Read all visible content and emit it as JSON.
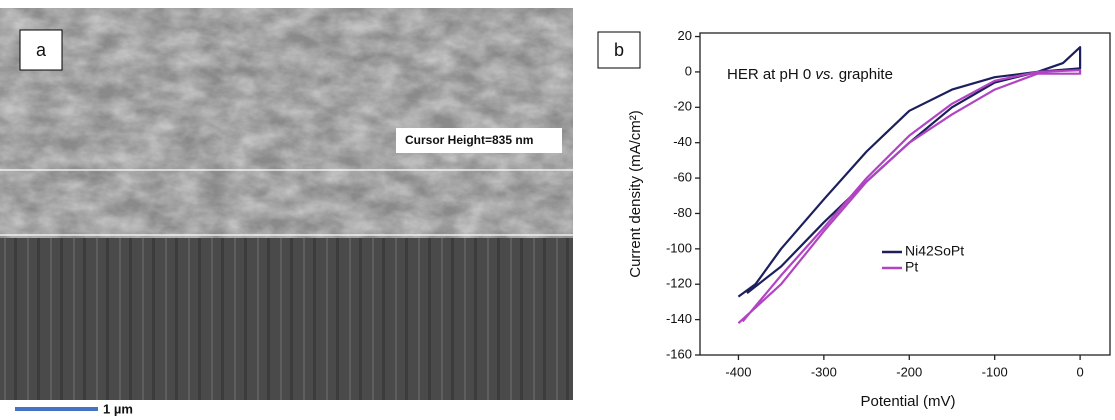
{
  "panel_a": {
    "label": "a",
    "cursor_label": "Cursor Height=835 nm",
    "scale_bar": "1 µm"
  },
  "chart_data": {
    "type": "line",
    "panel_label": "b",
    "annotation": [
      "HER at pH 0 ",
      "vs.",
      " graphite"
    ],
    "x_label": "Potential (mV)",
    "y_label": "Current density (mA/cm²)",
    "xlim": [
      -445,
      35
    ],
    "ylim": [
      -160,
      22
    ],
    "xticks": [
      -400,
      -300,
      -200,
      -100,
      0
    ],
    "yticks": [
      -160,
      -140,
      -120,
      -100,
      -80,
      -60,
      -40,
      -20,
      0,
      20
    ],
    "series": [
      {
        "name": "Ni42SoPt",
        "color": "#1c1f5c",
        "x": [
          -400,
          -380,
          -350,
          -300,
          -250,
          -200,
          -150,
          -100,
          -50,
          -20,
          0,
          0,
          -50,
          -100,
          -150,
          -200,
          -250,
          -300,
          -350,
          -390
        ],
        "values": [
          -127,
          -120,
          -100,
          -72,
          -45,
          -22,
          -10,
          -3,
          0,
          5,
          14,
          2,
          0,
          -6,
          -20,
          -40,
          -62,
          -85,
          -110,
          -125
        ]
      },
      {
        "name": "Pt",
        "color": "#b144c2",
        "x": [
          -400,
          -350,
          -300,
          -250,
          -200,
          -150,
          -100,
          -50,
          0,
          0,
          -50,
          -100,
          -150,
          -200,
          -250,
          -300,
          -350,
          -395
        ],
        "values": [
          -142,
          -120,
          -90,
          -62,
          -40,
          -24,
          -10,
          -1,
          -1,
          1,
          0,
          -5,
          -18,
          -36,
          -60,
          -88,
          -115,
          -141
        ]
      }
    ]
  }
}
